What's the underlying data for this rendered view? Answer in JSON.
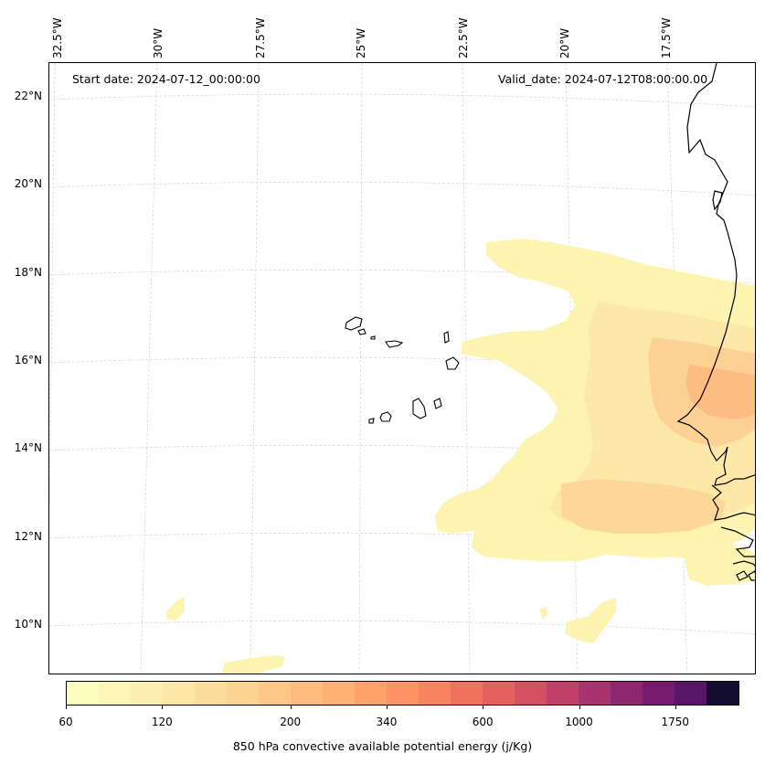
{
  "annotations": {
    "start_date": "Start date: 2024-07-12_00:00:00",
    "valid_date": "Valid_date: 2024-07-12T08:00:00.00"
  },
  "longitude_labels": [
    "32.5°W",
    "30°W",
    "27.5°W",
    "25°W",
    "22.5°W",
    "20°W",
    "17.5°W"
  ],
  "latitude_labels": [
    "22°N",
    "20°N",
    "18°N",
    "16°N",
    "14°N",
    "12°N",
    "10°N"
  ],
  "colorbar": {
    "label": "850 hPa convective available potential energy (j/Kg)",
    "tick_labels": [
      "60",
      "120",
      "200",
      "340",
      "600",
      "1000",
      "1750"
    ],
    "levels": [
      "60",
      "80",
      "100",
      "120",
      "140",
      "160",
      "180",
      "200",
      "240",
      "280",
      "340",
      "400",
      "480",
      "600",
      "700",
      "800",
      "1000",
      "1200",
      "1400",
      "1750",
      "2000"
    ],
    "colors": [
      "#fcfdbf",
      "#fcf6b7",
      "#fcefb1",
      "#fde6a6",
      "#fddd9c",
      "#fdd392",
      "#fec888",
      "#febd7e",
      "#feb075",
      "#fea26b",
      "#fd9364",
      "#f8835e",
      "#f1725c",
      "#e4615f",
      "#d45162",
      "#c13f69",
      "#a9326f",
      "#8f2670",
      "#761b6d",
      "#591668",
      "#130e2f"
    ]
  },
  "map_extent": {
    "lon_min": -33,
    "lon_max": -16,
    "lat_min": 9,
    "lat_max": 22.8
  },
  "colors": {
    "coastline": "#000000",
    "gridline": "#cccccc",
    "cape_low": "#fcf4b0",
    "cape_mid": "#fddfa0",
    "cape_high": "#fdc38a"
  }
}
